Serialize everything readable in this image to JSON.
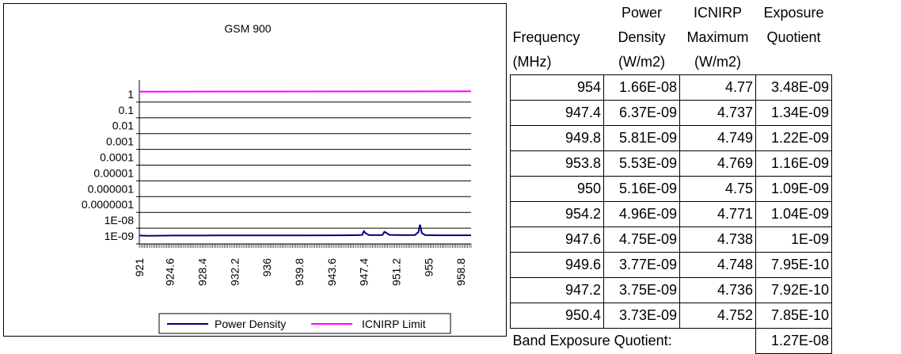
{
  "chart_data": {
    "type": "line",
    "title": "GSM 900",
    "xlabel": "",
    "ylabel": "",
    "y_scale": "log",
    "ylim": [
      1e-09,
      10
    ],
    "y_ticks": [
      "1E-09",
      "1E-08",
      "0.0000001",
      "0.000001",
      "0.00001",
      "0.0001",
      "0.001",
      "0.01",
      "0.1",
      "1"
    ],
    "x_ticks": [
      "921",
      "924.6",
      "928.4",
      "932.2",
      "936",
      "939.8",
      "943.6",
      "947.4",
      "951.2",
      "955",
      "958.8"
    ],
    "xlim": [
      921,
      960
    ],
    "legend_position": "bottom",
    "series": [
      {
        "name": "Power Density",
        "color": "#000080",
        "x": [
          921,
          922,
          925,
          930,
          935,
          940,
          945,
          946.8,
          947.2,
          947.4,
          947.6,
          948,
          949.4,
          949.6,
          949.8,
          950.0,
          950.4,
          952,
          953.4,
          953.8,
          954.0,
          954.2,
          954.6,
          956,
          960
        ],
        "y": [
          3.4e-09,
          3.3e-09,
          3.4e-09,
          3.45e-09,
          3.5e-09,
          3.5e-09,
          3.55e-09,
          3.6e-09,
          3.75e-09,
          6.37e-09,
          4.75e-09,
          3.6e-09,
          3.6e-09,
          3.77e-09,
          5.81e-09,
          5.16e-09,
          3.73e-09,
          3.6e-09,
          3.7e-09,
          5.53e-09,
          1.66e-08,
          4.96e-09,
          3.6e-09,
          3.55e-09,
          3.55e-09
        ]
      },
      {
        "name": "ICNIRP Limit",
        "color": "#ff00ff",
        "x": [
          921,
          960
        ],
        "y": [
          4.6,
          4.8
        ]
      }
    ]
  },
  "table": {
    "headers": [
      "Frequency\n(MHz)",
      "Power\nDensity\n(W/m2)",
      "ICNIRP\nMaximum\n(W/m2)",
      "Exposure\nQuotient"
    ],
    "rows": [
      [
        "954",
        "1.66E-08",
        "4.77",
        "3.48E-09"
      ],
      [
        "947.4",
        "6.37E-09",
        "4.737",
        "1.34E-09"
      ],
      [
        "949.8",
        "5.81E-09",
        "4.749",
        "1.22E-09"
      ],
      [
        "953.8",
        "5.53E-09",
        "4.769",
        "1.16E-09"
      ],
      [
        "950",
        "5.16E-09",
        "4.75",
        "1.09E-09"
      ],
      [
        "954.2",
        "4.96E-09",
        "4.771",
        "1.04E-09"
      ],
      [
        "947.6",
        "4.75E-09",
        "4.738",
        "1E-09"
      ],
      [
        "949.6",
        "3.77E-09",
        "4.748",
        "7.95E-10"
      ],
      [
        "947.2",
        "3.75E-09",
        "4.736",
        "7.92E-10"
      ],
      [
        "950.4",
        "3.73E-09",
        "4.752",
        "7.85E-10"
      ]
    ],
    "band_label": "Band Exposure Quotient:",
    "band_value": "1.27E-08"
  }
}
